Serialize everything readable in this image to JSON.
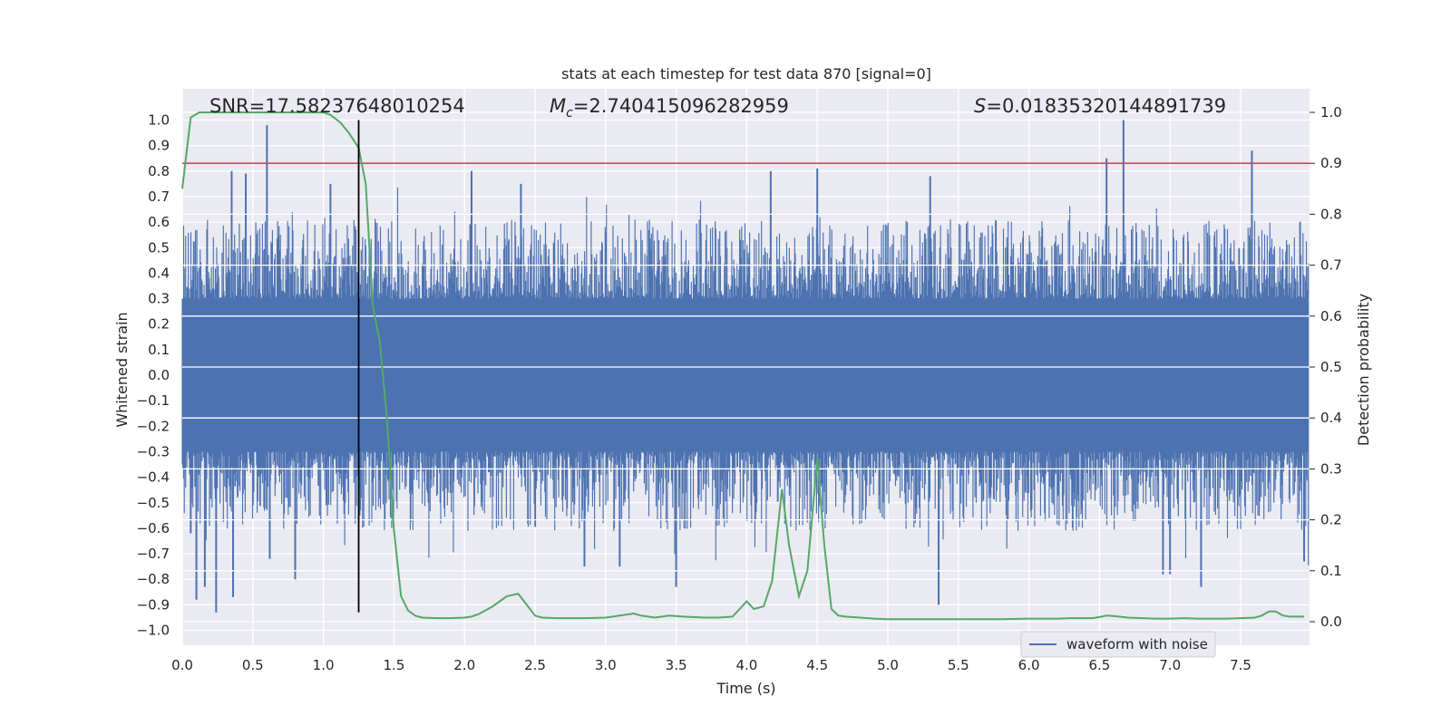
{
  "chart_data": {
    "type": "line",
    "title": "stats at each timestep for test data 870 [signal=0]",
    "xlabel": "Time (s)",
    "ylabel_left": "Whitened strain",
    "ylabel_right": "Detection probability",
    "xlim": [
      0,
      7.98
    ],
    "ylim_left": [
      -1.05,
      1.05
    ],
    "ylim_right": [
      -0.05,
      1.05
    ],
    "x_ticks": [
      "0.0",
      "0.5",
      "1.0",
      "1.5",
      "2.0",
      "2.5",
      "3.0",
      "3.5",
      "4.0",
      "4.5",
      "5.0",
      "5.5",
      "6.0",
      "6.5",
      "7.0",
      "7.5"
    ],
    "y_left_ticks": [
      "1.0",
      "0.9",
      "0.8",
      "0.7",
      "0.6",
      "0.5",
      "0.4",
      "0.3",
      "0.2",
      "0.1",
      "0.0",
      "-0.1",
      "-0.2",
      "-0.3",
      "-0.4",
      "-0.5",
      "-0.6",
      "-0.7",
      "-0.8",
      "-0.9",
      "-1.0"
    ],
    "y_right_ticks": [
      "1.0",
      "0.9",
      "0.8",
      "0.7",
      "0.6",
      "0.5",
      "0.4",
      "0.3",
      "0.2",
      "0.1",
      "0.0"
    ],
    "stats": {
      "snr": "SNR=17.58237648010254",
      "mc_prefix": "M",
      "mc_sub": "c",
      "mc_value": "=2.740415096282959",
      "s_prefix": "S",
      "s_value": "=0.01835320144891739"
    },
    "threshold": 0.9,
    "marker_time": 1.25,
    "legend": [
      "waveform with noise"
    ],
    "colors": {
      "waveform": "#4c72b0",
      "probability": "#55a868",
      "threshold": "#c44e52",
      "marker": "#000000",
      "plot_bg": "#eaeaf2",
      "grid": "#ffffff"
    },
    "waveform_envelope": {
      "core": 0.3,
      "typical_max": 0.5,
      "spikes": [
        {
          "t": 0.06,
          "v": -0.62
        },
        {
          "t": 0.1,
          "v": -0.88
        },
        {
          "t": 0.16,
          "v": -0.83
        },
        {
          "t": 0.24,
          "v": -0.93
        },
        {
          "t": 0.35,
          "v": 0.8
        },
        {
          "t": 0.36,
          "v": -0.87
        },
        {
          "t": 0.45,
          "v": 0.79
        },
        {
          "t": 0.6,
          "v": 0.98
        },
        {
          "t": 0.62,
          "v": -0.72
        },
        {
          "t": 0.8,
          "v": -0.8
        },
        {
          "t": 1.05,
          "v": 0.75
        },
        {
          "t": 2.05,
          "v": 0.8
        },
        {
          "t": 2.4,
          "v": 0.75
        },
        {
          "t": 2.85,
          "v": -0.75
        },
        {
          "t": 3.5,
          "v": -0.83
        },
        {
          "t": 4.17,
          "v": 0.8
        },
        {
          "t": 4.5,
          "v": 0.81
        },
        {
          "t": 5.3,
          "v": 0.78
        },
        {
          "t": 5.36,
          "v": -0.9
        },
        {
          "t": 6.55,
          "v": 0.85
        },
        {
          "t": 6.67,
          "v": 1.0
        },
        {
          "t": 7.58,
          "v": 0.88
        },
        {
          "t": 7.22,
          "v": -0.83
        },
        {
          "t": 7.95,
          "v": -0.73
        },
        {
          "t": 6.95,
          "v": -0.78
        },
        {
          "t": 7.0,
          "v": -0.78
        },
        {
          "t": 3.1,
          "v": -0.75
        }
      ]
    },
    "series": [
      {
        "x": [
          0.0,
          0.06,
          0.12,
          0.2,
          0.4,
          0.6,
          0.8,
          1.0,
          1.05,
          1.12,
          1.18,
          1.25,
          1.3,
          1.35,
          1.4,
          1.45,
          1.5,
          1.55,
          1.6,
          1.65,
          1.7,
          1.8,
          1.9,
          2.0,
          2.05,
          2.1,
          2.2,
          2.3,
          2.38,
          2.45,
          2.5,
          2.55,
          2.65,
          2.75,
          2.85,
          3.0,
          3.1,
          3.2,
          3.25,
          3.35,
          3.45,
          3.55,
          3.7,
          3.8,
          3.9,
          3.95,
          4.0,
          4.05,
          4.12,
          4.18,
          4.25,
          4.3,
          4.37,
          4.43,
          4.5,
          4.55,
          4.6,
          4.65,
          4.7,
          4.8,
          4.9,
          5.0,
          5.2,
          5.5,
          5.8,
          6.0,
          6.2,
          6.3,
          6.45,
          6.5,
          6.55,
          6.6,
          6.7,
          6.8,
          6.9,
          7.0,
          7.1,
          7.2,
          7.3,
          7.4,
          7.5,
          7.6,
          7.65,
          7.7,
          7.75,
          7.8,
          7.85,
          7.9,
          7.95
        ],
        "y": [
          0.85,
          0.99,
          1.0,
          1.0,
          1.0,
          1.0,
          1.0,
          1.0,
          0.995,
          0.98,
          0.96,
          0.93,
          0.86,
          0.62,
          0.55,
          0.4,
          0.18,
          0.05,
          0.022,
          0.012,
          0.008,
          0.007,
          0.007,
          0.008,
          0.01,
          0.015,
          0.03,
          0.05,
          0.055,
          0.03,
          0.012,
          0.008,
          0.007,
          0.007,
          0.007,
          0.008,
          0.012,
          0.016,
          0.012,
          0.008,
          0.012,
          0.01,
          0.008,
          0.008,
          0.01,
          0.025,
          0.04,
          0.025,
          0.03,
          0.08,
          0.26,
          0.15,
          0.05,
          0.1,
          0.32,
          0.15,
          0.025,
          0.012,
          0.01,
          0.008,
          0.006,
          0.005,
          0.005,
          0.005,
          0.005,
          0.006,
          0.006,
          0.007,
          0.007,
          0.009,
          0.012,
          0.011,
          0.008,
          0.007,
          0.006,
          0.006,
          0.007,
          0.006,
          0.006,
          0.006,
          0.007,
          0.008,
          0.012,
          0.02,
          0.02,
          0.012,
          0.01,
          0.01,
          0.01
        ]
      }
    ]
  }
}
